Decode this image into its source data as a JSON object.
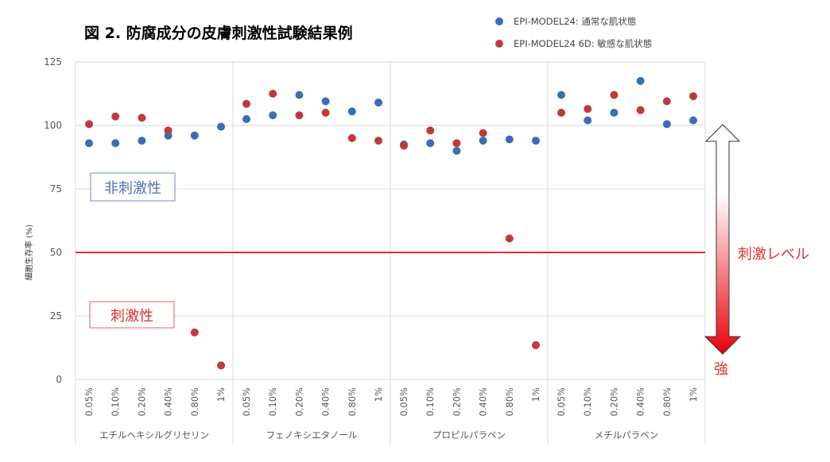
{
  "chart_data": {
    "type": "scatter",
    "title": "図 2. 防腐成分の皮膚刺激性試験結果例",
    "ylabel": "細胞生存率 (%)",
    "ylim": [
      0,
      125
    ],
    "yticks": [
      0,
      25,
      50,
      75,
      100,
      125
    ],
    "grid": "horizontal",
    "legend_position": "top-right",
    "groups": [
      {
        "label": "エチルヘキシルグリセリン",
        "categories": [
          "0.05%",
          "0.10%",
          "0.20%",
          "0.40%",
          "0.80%",
          "1%"
        ]
      },
      {
        "label": "フェノキシエタノール",
        "categories": [
          "0.05%",
          "0.10%",
          "0.20%",
          "0.40%",
          "0.80%",
          "1%"
        ]
      },
      {
        "label": "プロピルパラベン",
        "categories": [
          "0.05%",
          "0.10%",
          "0.20%",
          "0.40%",
          "0.80%",
          "1%"
        ]
      },
      {
        "label": "メチルパラベン",
        "categories": [
          "0.05%",
          "0.10%",
          "0.20%",
          "0.40%",
          "0.80%",
          "1%"
        ]
      }
    ],
    "series": [
      {
        "name": "EPI-MODEL24: 通常な肌状態",
        "color": "#3a6eb5",
        "values": [
          93,
          93,
          94,
          96,
          96,
          99.5,
          102.5,
          104,
          112,
          109.5,
          105.5,
          109,
          92.5,
          93,
          90,
          94,
          94.5,
          94,
          112,
          102,
          105,
          117.5,
          100.5,
          102
        ]
      },
      {
        "name": "EPI-MODEL24 6D: 敏感な肌状態",
        "color": "#c0393b",
        "values": [
          100.5,
          103.5,
          103,
          98,
          18.5,
          5.5,
          108.5,
          112.5,
          104,
          105,
          95,
          94,
          92,
          98,
          93,
          97,
          55.5,
          13.5,
          105,
          106.5,
          112,
          106,
          109.5,
          111.5
        ]
      }
    ],
    "threshold": {
      "value": 50,
      "color": "#e03030"
    },
    "zones": {
      "non_irritant": {
        "label": "非刺激性",
        "color": "#4f6fb0"
      },
      "irritant": {
        "label": "刺激性",
        "color": "#d93030"
      }
    },
    "annotations": {
      "level_label": "刺激レベル",
      "strong_label": "強"
    }
  }
}
